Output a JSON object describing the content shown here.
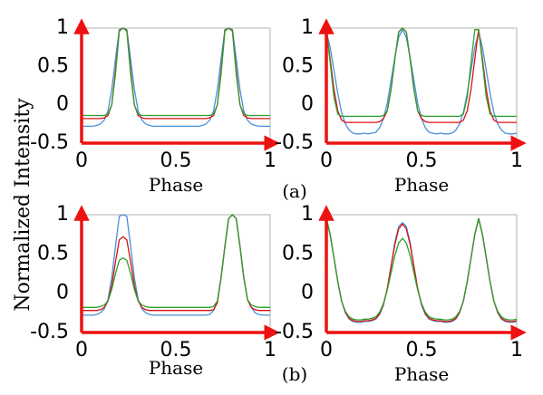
{
  "figure": {
    "ylabel": "Normalized Intensity",
    "panel_labels": [
      "(a)",
      "(b)"
    ]
  },
  "colors": {
    "axis_arrow": "#ee1111",
    "frame": "#b0b0b0"
  },
  "chart_data": [
    {
      "type": "line",
      "xlabel": "Phase",
      "xlim": [
        0,
        1
      ],
      "ylim": [
        -0.5,
        1
      ],
      "xticks": [
        "0",
        "0.5",
        "1"
      ],
      "yticks": [
        "-0.5",
        "0",
        "0.5",
        "1"
      ],
      "x": [
        0,
        0.02,
        0.04,
        0.06,
        0.08,
        0.1,
        0.12,
        0.14,
        0.16,
        0.18,
        0.2,
        0.22,
        0.24,
        0.26,
        0.28,
        0.3,
        0.32,
        0.34,
        0.36,
        0.38,
        0.4,
        0.42,
        0.44,
        0.46,
        0.48,
        0.5,
        0.52,
        0.54,
        0.56,
        0.58,
        0.6,
        0.62,
        0.64,
        0.66,
        0.68,
        0.7,
        0.72,
        0.74,
        0.76,
        0.78,
        0.8,
        0.82,
        0.84,
        0.86,
        0.88,
        0.9,
        0.92,
        0.94,
        0.96,
        0.98,
        1.0
      ],
      "series": [
        {
          "color": "#4a90d9",
          "values": [
            -0.28,
            -0.28,
            -0.28,
            -0.28,
            -0.27,
            -0.25,
            -0.2,
            -0.08,
            0.2,
            0.6,
            0.98,
            1.0,
            0.98,
            0.6,
            0.2,
            -0.08,
            -0.2,
            -0.25,
            -0.27,
            -0.28,
            -0.28,
            -0.28,
            -0.28,
            -0.28,
            -0.28,
            -0.28,
            -0.28,
            -0.28,
            -0.28,
            -0.28,
            -0.28,
            -0.28,
            -0.27,
            -0.25,
            -0.2,
            -0.08,
            0.2,
            0.6,
            0.98,
            1.0,
            0.98,
            0.6,
            0.2,
            -0.08,
            -0.2,
            -0.25,
            -0.27,
            -0.28,
            -0.28,
            -0.28,
            -0.28
          ]
        },
        {
          "color": "#dd1111",
          "values": [
            -0.18,
            -0.18,
            -0.18,
            -0.18,
            -0.18,
            -0.18,
            -0.17,
            -0.14,
            0.0,
            0.45,
            0.97,
            1.0,
            0.97,
            0.45,
            0.0,
            -0.14,
            -0.17,
            -0.18,
            -0.18,
            -0.18,
            -0.18,
            -0.18,
            -0.18,
            -0.18,
            -0.18,
            -0.18,
            -0.18,
            -0.18,
            -0.18,
            -0.18,
            -0.18,
            -0.18,
            -0.18,
            -0.18,
            -0.17,
            -0.14,
            0.0,
            0.45,
            0.97,
            1.0,
            0.97,
            0.45,
            0.0,
            -0.14,
            -0.17,
            -0.18,
            -0.18,
            -0.18,
            -0.18,
            -0.18,
            -0.18
          ]
        },
        {
          "color": "#2ca02c",
          "values": [
            -0.14,
            -0.14,
            -0.14,
            -0.14,
            -0.14,
            -0.14,
            -0.14,
            -0.12,
            0.0,
            0.4,
            0.96,
            1.0,
            0.96,
            0.4,
            0.0,
            -0.12,
            -0.14,
            -0.14,
            -0.14,
            -0.14,
            -0.14,
            -0.14,
            -0.14,
            -0.14,
            -0.14,
            -0.14,
            -0.14,
            -0.14,
            -0.14,
            -0.14,
            -0.14,
            -0.14,
            -0.14,
            -0.14,
            -0.14,
            -0.12,
            0.0,
            0.4,
            0.96,
            1.0,
            0.96,
            0.4,
            0.0,
            -0.12,
            -0.14,
            -0.14,
            -0.14,
            -0.14,
            -0.14,
            -0.14,
            -0.14
          ]
        }
      ]
    },
    {
      "type": "line",
      "xlabel": "Phase",
      "xlim": [
        0,
        1
      ],
      "ylim": [
        -0.5,
        1
      ],
      "xticks": [
        "0",
        "0.5",
        "1"
      ],
      "yticks": [
        "-0.5",
        "0",
        "0.5",
        "1"
      ],
      "x": [
        0,
        0.02,
        0.04,
        0.06,
        0.08,
        0.1,
        0.12,
        0.14,
        0.16,
        0.18,
        0.2,
        0.22,
        0.24,
        0.26,
        0.28,
        0.3,
        0.32,
        0.34,
        0.36,
        0.38,
        0.4,
        0.42,
        0.44,
        0.46,
        0.48,
        0.5,
        0.52,
        0.54,
        0.56,
        0.58,
        0.6,
        0.62,
        0.64,
        0.66,
        0.68,
        0.7,
        0.72,
        0.74,
        0.76,
        0.78,
        0.8,
        0.82,
        0.84,
        0.86,
        0.88,
        0.9,
        0.92,
        0.94,
        0.96,
        0.98,
        1.0
      ],
      "series": [
        {
          "color": "#4a90d9",
          "values": [
            0.95,
            0.75,
            0.45,
            0.15,
            -0.1,
            -0.25,
            -0.33,
            -0.37,
            -0.38,
            -0.38,
            -0.37,
            -0.38,
            -0.37,
            -0.36,
            -0.3,
            -0.18,
            0.02,
            0.32,
            0.62,
            0.88,
            0.98,
            0.88,
            0.62,
            0.32,
            0.02,
            -0.18,
            -0.3,
            -0.36,
            -0.37,
            -0.38,
            -0.37,
            -0.38,
            -0.38,
            -0.37,
            -0.33,
            -0.25,
            -0.1,
            0.15,
            0.45,
            0.75,
            0.95,
            0.75,
            0.45,
            0.15,
            -0.1,
            -0.25,
            -0.33,
            -0.37,
            -0.38,
            -0.38,
            -0.37
          ]
        },
        {
          "color": "#dd1111",
          "values": [
            0.98,
            0.6,
            0.2,
            -0.08,
            -0.2,
            -0.23,
            -0.23,
            -0.23,
            -0.23,
            -0.23,
            -0.23,
            -0.23,
            -0.23,
            -0.23,
            -0.22,
            -0.18,
            -0.08,
            0.2,
            0.6,
            0.95,
            1.0,
            0.95,
            0.6,
            0.2,
            -0.08,
            -0.18,
            -0.22,
            -0.23,
            -0.23,
            -0.23,
            -0.23,
            -0.23,
            -0.23,
            -0.23,
            -0.23,
            -0.23,
            -0.2,
            -0.08,
            0.2,
            0.6,
            0.98,
            0.6,
            0.2,
            -0.08,
            -0.2,
            -0.23,
            -0.23,
            -0.23,
            -0.23,
            -0.23,
            -0.23
          ]
        },
        {
          "color": "#2ca02c",
          "values": [
            0.98,
            0.55,
            0.1,
            -0.12,
            -0.15,
            -0.15,
            -0.15,
            -0.15,
            -0.15,
            -0.15,
            -0.15,
            -0.15,
            -0.15,
            -0.15,
            -0.15,
            -0.14,
            -0.08,
            0.2,
            0.6,
            0.95,
            1.0,
            0.95,
            0.6,
            0.2,
            -0.08,
            -0.14,
            -0.15,
            -0.15,
            -0.15,
            -0.15,
            -0.15,
            -0.15,
            -0.15,
            -0.15,
            -0.15,
            -0.15,
            -0.12,
            0.1,
            0.55,
            0.98,
            0.98,
            0.55,
            0.1,
            -0.12,
            -0.15,
            -0.15,
            -0.15,
            -0.15,
            -0.15,
            -0.15,
            -0.15
          ]
        }
      ]
    },
    {
      "type": "line",
      "xlabel": "Phase",
      "xlim": [
        0,
        1
      ],
      "ylim": [
        -0.5,
        1
      ],
      "xticks": [
        "0",
        "0.5",
        "1"
      ],
      "yticks": [
        "-0.5",
        "0",
        "0.5",
        "1"
      ],
      "x": [
        0,
        0.02,
        0.04,
        0.06,
        0.08,
        0.1,
        0.12,
        0.14,
        0.16,
        0.18,
        0.2,
        0.22,
        0.24,
        0.26,
        0.28,
        0.3,
        0.32,
        0.34,
        0.36,
        0.38,
        0.4,
        0.42,
        0.44,
        0.46,
        0.48,
        0.5,
        0.52,
        0.54,
        0.56,
        0.58,
        0.6,
        0.62,
        0.64,
        0.66,
        0.68,
        0.7,
        0.72,
        0.74,
        0.76,
        0.78,
        0.8,
        0.82,
        0.84,
        0.86,
        0.88,
        0.9,
        0.92,
        0.94,
        0.96,
        0.98,
        1.0
      ],
      "series": [
        {
          "color": "#4a90d9",
          "values": [
            -0.28,
            -0.28,
            -0.28,
            -0.28,
            -0.27,
            -0.25,
            -0.2,
            -0.08,
            0.2,
            0.6,
            0.98,
            1.0,
            0.98,
            0.6,
            0.2,
            -0.08,
            -0.2,
            -0.25,
            -0.27,
            -0.28,
            -0.28,
            -0.28,
            -0.28,
            -0.28,
            -0.28,
            -0.28,
            -0.28,
            -0.28,
            -0.28,
            -0.28,
            -0.28,
            -0.28,
            -0.28,
            -0.28,
            -0.27,
            -0.22,
            -0.1,
            0.2,
            0.6,
            0.95,
            1.0,
            0.95,
            0.6,
            0.2,
            -0.08,
            -0.18,
            -0.25,
            -0.27,
            -0.28,
            -0.28,
            -0.28
          ]
        },
        {
          "color": "#dd1111",
          "values": [
            -0.22,
            -0.22,
            -0.22,
            -0.22,
            -0.22,
            -0.21,
            -0.18,
            -0.1,
            0.1,
            0.4,
            0.68,
            0.72,
            0.68,
            0.4,
            0.1,
            -0.1,
            -0.18,
            -0.21,
            -0.22,
            -0.22,
            -0.22,
            -0.22,
            -0.22,
            -0.22,
            -0.22,
            -0.22,
            -0.22,
            -0.22,
            -0.22,
            -0.22,
            -0.22,
            -0.22,
            -0.22,
            -0.22,
            -0.22,
            -0.21,
            -0.12,
            0.2,
            0.6,
            0.95,
            1.0,
            0.95,
            0.6,
            0.2,
            -0.08,
            -0.18,
            -0.21,
            -0.22,
            -0.22,
            -0.22,
            -0.22
          ]
        },
        {
          "color": "#2ca02c",
          "values": [
            -0.18,
            -0.18,
            -0.18,
            -0.18,
            -0.18,
            -0.17,
            -0.15,
            -0.1,
            0.05,
            0.25,
            0.42,
            0.45,
            0.42,
            0.25,
            0.05,
            -0.1,
            -0.15,
            -0.17,
            -0.18,
            -0.18,
            -0.18,
            -0.18,
            -0.18,
            -0.18,
            -0.18,
            -0.18,
            -0.18,
            -0.18,
            -0.18,
            -0.18,
            -0.18,
            -0.18,
            -0.18,
            -0.18,
            -0.18,
            -0.17,
            -0.1,
            0.2,
            0.6,
            0.95,
            1.0,
            0.95,
            0.6,
            0.2,
            -0.08,
            -0.15,
            -0.17,
            -0.18,
            -0.18,
            -0.18,
            -0.18
          ]
        }
      ]
    },
    {
      "type": "line",
      "xlabel": "Phase",
      "xlim": [
        0,
        1
      ],
      "ylim": [
        -0.5,
        1
      ],
      "xticks": [
        "0",
        "0.5",
        "1"
      ],
      "yticks": [
        "-0.5",
        "0",
        "0.5",
        "1"
      ],
      "x": [
        0,
        0.02,
        0.04,
        0.06,
        0.08,
        0.1,
        0.12,
        0.14,
        0.16,
        0.18,
        0.2,
        0.22,
        0.24,
        0.26,
        0.28,
        0.3,
        0.32,
        0.34,
        0.36,
        0.38,
        0.4,
        0.42,
        0.44,
        0.46,
        0.48,
        0.5,
        0.52,
        0.54,
        0.56,
        0.58,
        0.6,
        0.62,
        0.64,
        0.66,
        0.68,
        0.7,
        0.72,
        0.74,
        0.76,
        0.78,
        0.8,
        0.82,
        0.84,
        0.86,
        0.88,
        0.9,
        0.92,
        0.94,
        0.96,
        0.98,
        1.0
      ],
      "series": [
        {
          "color": "#4a90d9",
          "values": [
            0.95,
            0.75,
            0.45,
            0.15,
            -0.1,
            -0.25,
            -0.33,
            -0.36,
            -0.37,
            -0.37,
            -0.36,
            -0.36,
            -0.35,
            -0.33,
            -0.27,
            -0.15,
            0.05,
            0.35,
            0.65,
            0.85,
            0.9,
            0.85,
            0.65,
            0.35,
            0.05,
            -0.15,
            -0.27,
            -0.33,
            -0.35,
            -0.36,
            -0.36,
            -0.37,
            -0.37,
            -0.36,
            -0.33,
            -0.25,
            -0.1,
            0.15,
            0.45,
            0.75,
            0.95,
            0.75,
            0.45,
            0.15,
            -0.1,
            -0.25,
            -0.33,
            -0.36,
            -0.37,
            -0.37,
            -0.36
          ]
        },
        {
          "color": "#dd1111",
          "values": [
            0.95,
            0.75,
            0.45,
            0.15,
            -0.1,
            -0.24,
            -0.32,
            -0.35,
            -0.36,
            -0.36,
            -0.35,
            -0.35,
            -0.34,
            -0.32,
            -0.26,
            -0.14,
            0.06,
            0.34,
            0.62,
            0.82,
            0.88,
            0.82,
            0.62,
            0.34,
            0.06,
            -0.14,
            -0.26,
            -0.32,
            -0.34,
            -0.35,
            -0.35,
            -0.36,
            -0.36,
            -0.35,
            -0.32,
            -0.24,
            -0.1,
            0.15,
            0.45,
            0.75,
            0.95,
            0.75,
            0.45,
            0.15,
            -0.1,
            -0.24,
            -0.32,
            -0.35,
            -0.36,
            -0.36,
            -0.35
          ]
        },
        {
          "color": "#2ca02c",
          "values": [
            0.95,
            0.75,
            0.45,
            0.15,
            -0.1,
            -0.23,
            -0.3,
            -0.33,
            -0.34,
            -0.34,
            -0.33,
            -0.33,
            -0.32,
            -0.3,
            -0.24,
            -0.13,
            0.04,
            0.26,
            0.48,
            0.64,
            0.7,
            0.64,
            0.48,
            0.26,
            0.04,
            -0.13,
            -0.24,
            -0.3,
            -0.32,
            -0.33,
            -0.33,
            -0.34,
            -0.34,
            -0.33,
            -0.3,
            -0.23,
            -0.1,
            0.15,
            0.45,
            0.75,
            0.95,
            0.75,
            0.45,
            0.15,
            -0.1,
            -0.23,
            -0.3,
            -0.33,
            -0.34,
            -0.34,
            -0.33
          ]
        }
      ]
    }
  ]
}
